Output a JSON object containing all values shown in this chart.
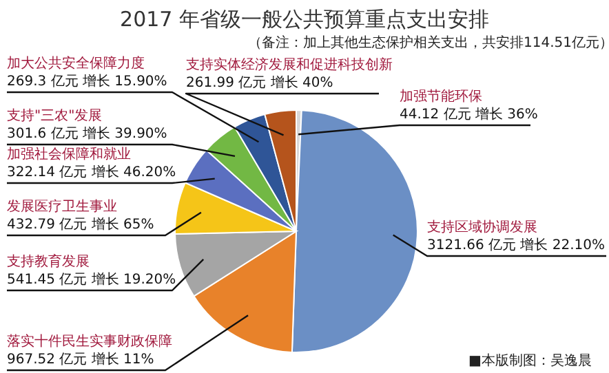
{
  "chart_data": {
    "type": "pie",
    "title": "2017 年省级一般公共预算重点支出安排",
    "categories": [
      "加强节能环保",
      "支持区域协调发展",
      "落实十件民生实事财政保障",
      "支持教育发展",
      "发展医疗卫生事业",
      "加强社会保障和就业",
      "支持\"三农\"发展",
      "加大公共安全保障力度",
      "支持实体经济发展和促进科技创新"
    ],
    "values": [
      44.12,
      3121.66,
      967.52,
      541.45,
      432.79,
      322.14,
      301.6,
      269.3,
      261.99
    ],
    "colors": [
      "#d9d9d9",
      "#6b8fc5",
      "#e8822a",
      "#a5a5a5",
      "#f5c518",
      "#5b6fc0",
      "#72b844",
      "#2f5597",
      "#b5541c"
    ],
    "value_labels": [
      "44.12 亿元  增长 36%",
      "3121.66 亿元  增长 22.10%",
      "967.52 亿元  增长 11%",
      "541.45 亿元  增长 19.20%",
      "432.79 亿元  增长 65%",
      "322.14 亿元  增长 46.20%",
      "301.6 亿元  增长 39.90%",
      "269.3 亿元  增长 15.90%",
      "261.99 亿元  增长 40%"
    ],
    "annotations": [
      "（备注：加上其他生态保护相关支出，共安排114.51亿元）",
      "■本版制图：吴逸晨"
    ]
  }
}
